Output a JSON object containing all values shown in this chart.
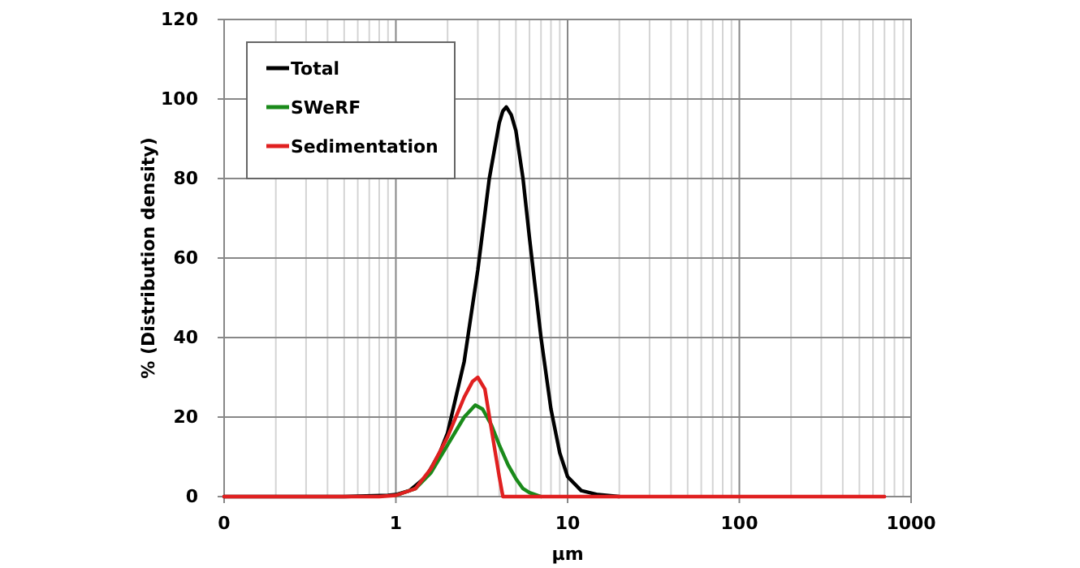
{
  "chart_data": {
    "type": "line",
    "xlabel": "µm",
    "ylabel": "% (Distribution density)",
    "log": "x",
    "grid": true,
    "legend": "top left",
    "line_style": "solid",
    "marker": "none",
    "xlim": [
      0.1,
      1000
    ],
    "xticks": [
      {
        "value": 0.1,
        "label": "0"
      },
      1,
      10,
      100,
      1000
    ],
    "ylim": [
      0,
      120
    ],
    "yticks": [
      0,
      20,
      40,
      60,
      80,
      100,
      120
    ],
    "series": [
      {
        "name": "Total",
        "color": "#000000",
        "x": [
          0.1,
          0.5,
          0.9,
          1,
          1.2,
          1.5,
          1.8,
          2,
          2.5,
          3,
          3.5,
          4,
          4.2,
          4.4,
          4.7,
          5,
          5.5,
          6,
          7,
          8,
          9,
          10,
          12,
          15,
          20
        ],
        "values": [
          0,
          0,
          0.3,
          0.5,
          1.5,
          5,
          11,
          16,
          34,
          57,
          80,
          94,
          97,
          98,
          96,
          92,
          80,
          65,
          40,
          22,
          11,
          5,
          1.5,
          0.5,
          0
        ]
      },
      {
        "name": "SWeRF",
        "color": "#1a8a1a",
        "x": [
          1,
          1.3,
          1.6,
          2,
          2.5,
          2.9,
          3.2,
          3.6,
          4,
          4.5,
          5,
          5.5,
          6,
          7
        ],
        "values": [
          0.3,
          2,
          6,
          13,
          20,
          23,
          22,
          18,
          13,
          8,
          4.5,
          2,
          1,
          0
        ]
      },
      {
        "name": "Sedimentation",
        "color": "#e02020",
        "x": [
          0.1,
          0.8,
          1,
          1.3,
          1.6,
          2,
          2.5,
          2.8,
          3,
          3.3,
          3.6,
          4,
          4.2,
          700
        ],
        "values": [
          0,
          0,
          0.3,
          2,
          7,
          15,
          25,
          29,
          30,
          27,
          17,
          5,
          0,
          0
        ]
      }
    ]
  }
}
